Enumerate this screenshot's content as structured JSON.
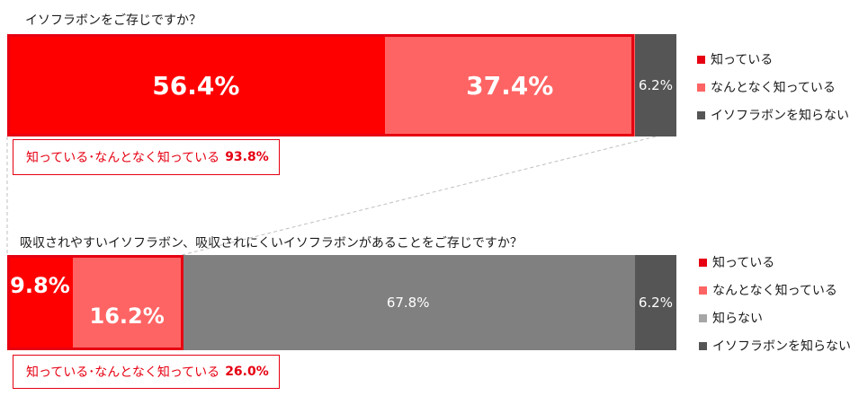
{
  "colors": {
    "knows": "#ff0000",
    "somewhat": "#ff6464",
    "not_know": "#808080",
    "not_know_iso": "#555555",
    "accent": "#e60012"
  },
  "chart_data": [
    {
      "type": "bar",
      "orientation": "horizontal-stacked-100",
      "title": "イソフラボンをご存じですか？",
      "series": [
        {
          "name": "知っている",
          "label": "56.4%",
          "value": 56.4
        },
        {
          "name": "なんとなく知っている",
          "label": "37.4%",
          "value": 37.4
        },
        {
          "name": "イソフラボンを知らない",
          "label": "6.2%",
          "value": 6.2
        }
      ],
      "summary_label": "知っている･なんとなく知っている",
      "summary_value": "93.8%",
      "legend_position": "right"
    },
    {
      "type": "bar",
      "orientation": "horizontal-stacked-100",
      "title": "吸収されやすいイソフラボン、吸収されにくいイソフラボンがあることをご存じですか？",
      "series": [
        {
          "name": "知っている",
          "label": "9.8%",
          "value": 9.8
        },
        {
          "name": "なんとなく知っている",
          "label": "16.2%",
          "value": 16.2
        },
        {
          "name": "知らない",
          "label": "67.8%",
          "value": 67.8
        },
        {
          "name": "イソフラボンを知らない",
          "label": "6.2%",
          "value": 6.2
        }
      ],
      "summary_label": "知っている･なんとなく知っている",
      "summary_value": "26.0%",
      "legend_position": "right"
    }
  ]
}
